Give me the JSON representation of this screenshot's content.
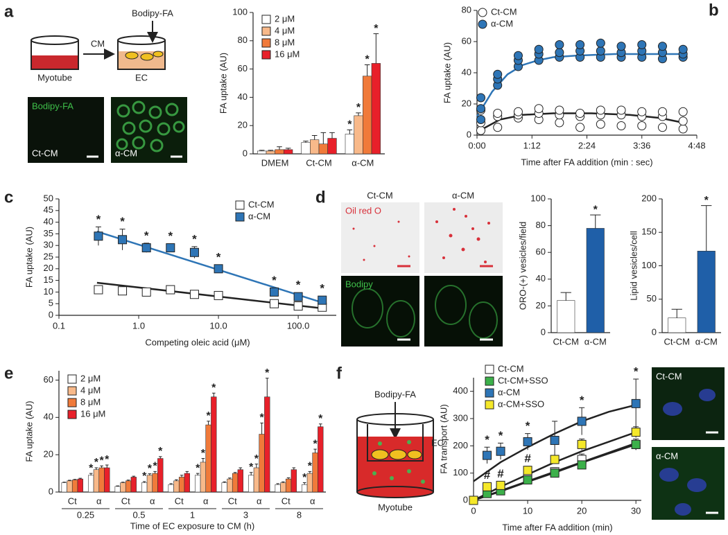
{
  "chart_data": [
    {
      "type": "bar",
      "ylabel": "FA uptake (AU)",
      "categories": [
        "DMEM",
        "Ct-CM",
        "α-CM"
      ],
      "ylim": [
        0,
        100
      ],
      "yticks": [
        0,
        20,
        40,
        60,
        80,
        100
      ],
      "series": [
        {
          "name": "2 μM",
          "color": "#ffffff",
          "values": [
            2,
            8,
            14
          ],
          "errors": [
            0.5,
            1,
            3
          ],
          "stars": [
            null,
            null,
            "*"
          ]
        },
        {
          "name": "4 μM",
          "color": "#f8b98a",
          "values": [
            2,
            10,
            27
          ],
          "errors": [
            0.5,
            3,
            2
          ],
          "stars": [
            null,
            null,
            "*"
          ]
        },
        {
          "name": "8 μM",
          "color": "#f07a3a",
          "values": [
            3,
            7,
            55
          ],
          "errors": [
            2,
            8,
            8
          ],
          "stars": [
            null,
            null,
            "*"
          ]
        },
        {
          "name": "16 μM",
          "color": "#e8202a",
          "values": [
            3,
            11,
            64
          ],
          "errors": [
            1,
            4,
            21
          ],
          "stars": [
            null,
            null,
            "*"
          ]
        }
      ]
    },
    {
      "type": "scatter",
      "marker": "circle",
      "ylabel": "FA uptake (AU)",
      "xlabel": "Time after FA addition (min : sec)",
      "xlim": [
        0,
        288
      ],
      "xticks": [
        {
          "value": 0,
          "label": "0:00"
        },
        {
          "value": 72,
          "label": "1:12"
        },
        {
          "value": 144,
          "label": "2:24"
        },
        {
          "value": 216,
          "label": "3:36"
        },
        {
          "value": 288,
          "label": "4:48"
        }
      ],
      "ylim": [
        0,
        80
      ],
      "yticks": [
        0,
        20,
        40,
        60,
        80
      ],
      "series": [
        {
          "name": "Ct-CM",
          "color": "#ffffff",
          "x": [
            5,
            5,
            5,
            27,
            27,
            27,
            54,
            54,
            54,
            81,
            81,
            81,
            108,
            108,
            108,
            135,
            135,
            135,
            162,
            162,
            162,
            189,
            189,
            189,
            216,
            216,
            216,
            243,
            243,
            243,
            270,
            270,
            270
          ],
          "values": [
            3,
            8,
            16,
            5,
            12,
            14,
            11,
            13,
            15,
            10,
            14,
            17,
            8,
            13,
            16,
            5,
            12,
            14,
            7,
            13,
            16,
            6,
            13,
            16,
            6,
            12,
            15,
            5,
            12,
            15,
            4,
            9,
            15
          ]
        },
        {
          "name": "α-CM",
          "color": "#2e75b6",
          "x": [
            5,
            5,
            5,
            27,
            27,
            27,
            54,
            54,
            54,
            81,
            81,
            81,
            108,
            108,
            108,
            135,
            135,
            135,
            162,
            162,
            162,
            189,
            189,
            189,
            216,
            216,
            216,
            243,
            243,
            243,
            270,
            270,
            270
          ],
          "values": [
            10,
            17,
            24,
            32,
            36,
            39,
            44,
            48,
            51,
            48,
            52,
            55,
            50,
            53,
            58,
            50,
            54,
            58,
            50,
            54,
            59,
            50,
            53,
            57,
            50,
            54,
            58,
            49,
            53,
            57,
            50,
            52,
            55
          ]
        }
      ],
      "fits": [
        {
          "color": "#222222",
          "x": [
            0,
            30,
            60,
            100,
            150,
            200,
            240,
            270
          ],
          "values": [
            2,
            10,
            13,
            14,
            14,
            13,
            11,
            8
          ]
        },
        {
          "color": "#2e75b6",
          "x": [
            0,
            20,
            40,
            60,
            80,
            100,
            130,
            180,
            270
          ],
          "values": [
            12,
            28,
            39,
            45,
            48,
            50,
            51,
            52,
            52
          ]
        }
      ]
    },
    {
      "type": "scatter",
      "marker": "square",
      "xlog": true,
      "ylabel": "FA uptake (AU)",
      "xlabel": "Competing oleic acid (μM)",
      "xlim": [
        0.1,
        300
      ],
      "xticks": [
        0.1,
        {
          "value": 1,
          "label": "1.0"
        },
        {
          "value": 10,
          "label": "10.0"
        },
        {
          "value": 100,
          "label": "100.0"
        }
      ],
      "ylim": [
        0,
        50
      ],
      "yticks": [
        0,
        5,
        10,
        15,
        20,
        25,
        30,
        35,
        40,
        45,
        50
      ],
      "series": [
        {
          "name": "Ct-CM",
          "color": "#ffffff",
          "x": [
            0.3125,
            0.625,
            1.25,
            2.5,
            5,
            10,
            50,
            100,
            200
          ],
          "values": [
            11,
            10.5,
            10,
            11,
            9,
            8.5,
            5,
            4,
            3.5
          ],
          "errors": [
            0.5,
            0.5,
            0.5,
            0.5,
            0.5,
            0.5,
            0.5,
            0.5,
            0.5
          ]
        },
        {
          "name": "α-CM",
          "color": "#2e75b6",
          "x": [
            0.3125,
            0.625,
            1.25,
            2.5,
            5,
            10,
            50,
            100,
            200
          ],
          "values": [
            34,
            32.5,
            29,
            29,
            27,
            20,
            10,
            8,
            6.5
          ],
          "errors": [
            4,
            4.5,
            2,
            1.5,
            2.5,
            1,
            1,
            1,
            1
          ],
          "stars": [
            "*",
            "*",
            "*",
            "*",
            "*",
            "*",
            "*",
            "*",
            "*"
          ]
        }
      ],
      "fits": [
        {
          "color": "#222222",
          "x": [
            0.3,
            200
          ],
          "values": [
            14,
            3
          ]
        },
        {
          "color": "#2e75b6",
          "x": [
            0.3,
            200
          ],
          "values": [
            36,
            5.5
          ]
        }
      ]
    },
    {
      "type": "bar",
      "ylabel": "ORO-(+) vesicles/field",
      "categories": [
        "Ct-CM",
        "α-CM"
      ],
      "ylim": [
        0,
        100
      ],
      "yticks": [
        0,
        20,
        40,
        60,
        80,
        100
      ],
      "colors": [
        "#ffffff",
        "#1f5fa8"
      ],
      "values": [
        24,
        78
      ],
      "errors": [
        6,
        10
      ],
      "stars": [
        null,
        "*"
      ]
    },
    {
      "type": "bar",
      "ylabel": "Lipid vesicles/cell",
      "categories": [
        "Ct-CM",
        "α-CM"
      ],
      "ylim": [
        0,
        200
      ],
      "yticks": [
        0,
        50,
        100,
        150,
        200
      ],
      "colors": [
        "#ffffff",
        "#1f5fa8"
      ],
      "values": [
        22,
        122
      ],
      "errors": [
        13,
        68
      ],
      "stars": [
        null,
        "*"
      ]
    },
    {
      "type": "bar",
      "ylabel": "FA uptake (AU)",
      "xlabel": "Time of EC exposure to CM (h)",
      "categories": [
        "Ct",
        "α",
        "Ct",
        "α",
        "Ct",
        "α",
        "Ct",
        "α",
        "Ct",
        "α"
      ],
      "groups": [
        "0.25",
        "0.5",
        "1",
        "3",
        "8"
      ],
      "ylim": [
        0,
        65
      ],
      "yticks": [
        0,
        20,
        40,
        60
      ],
      "series": [
        {
          "name": "2 μM",
          "color": "#ffffff",
          "values": [
            5,
            9,
            3,
            5,
            4,
            9,
            5,
            9,
            4,
            4
          ],
          "errors": [
            0.3,
            1,
            0.3,
            0.6,
            0.5,
            1,
            0.5,
            1.5,
            0.5,
            1
          ],
          "stars": [
            null,
            "*",
            null,
            "*",
            null,
            "*",
            null,
            "*",
            null,
            "*"
          ]
        },
        {
          "name": "4 μM",
          "color": "#f8b98a",
          "values": [
            6,
            12,
            5,
            9,
            6,
            16,
            7,
            13,
            5,
            10
          ],
          "errors": [
            0.3,
            1,
            0.3,
            0.8,
            0.6,
            2,
            0.5,
            2,
            0.5,
            1
          ],
          "stars": [
            null,
            "*",
            null,
            "*",
            null,
            "*",
            null,
            "*",
            null,
            "*"
          ]
        },
        {
          "name": "8 μM",
          "color": "#f07a3a",
          "values": [
            6.5,
            13,
            6,
            10,
            8,
            36,
            10,
            31,
            7,
            21
          ],
          "errors": [
            0.3,
            1,
            0.4,
            1,
            1,
            2,
            0.5,
            6,
            0.6,
            2
          ],
          "stars": [
            null,
            "*",
            null,
            "*",
            null,
            "*",
            null,
            "*",
            null,
            "*"
          ]
        },
        {
          "name": "16 μM",
          "color": "#e8202a",
          "values": [
            7,
            13,
            8,
            18,
            10,
            51,
            12,
            51,
            12,
            35
          ],
          "errors": [
            0.4,
            1.5,
            0.5,
            1,
            1,
            2,
            1,
            10,
            1,
            1.5
          ],
          "stars": [
            null,
            "*",
            null,
            "*",
            null,
            "*",
            null,
            "*",
            null,
            "*"
          ]
        }
      ]
    },
    {
      "type": "scatter",
      "marker": "square",
      "ylabel": "FA transport (AU)",
      "xlabel": "Time after FA addition (min)",
      "xlim": [
        0,
        31
      ],
      "xticks": [
        0,
        10,
        20,
        30
      ],
      "ylim": [
        0,
        450
      ],
      "yticks": [
        0,
        100,
        200,
        300,
        400
      ],
      "series": [
        {
          "name": "Ct-CM",
          "color": "#ffffff",
          "x": [
            0,
            2.5,
            5,
            10,
            15,
            20,
            30
          ],
          "values": [
            0,
            30,
            40,
            80,
            105,
            150,
            205
          ],
          "errors": [
            0,
            10,
            10,
            15,
            15,
            20,
            20
          ]
        },
        {
          "name": "Ct-CM+SSO",
          "color": "#3cb04a",
          "x": [
            0,
            2.5,
            5,
            10,
            15,
            20,
            30
          ],
          "values": [
            0,
            25,
            35,
            75,
            100,
            130,
            205
          ],
          "errors": [
            0,
            8,
            10,
            12,
            15,
            15,
            20
          ]
        },
        {
          "name": "α-CM",
          "color": "#2e75b6",
          "x": [
            0,
            2.5,
            5,
            10,
            15,
            20,
            30
          ],
          "values": [
            0,
            165,
            180,
            215,
            220,
            290,
            355
          ],
          "errors": [
            0,
            30,
            30,
            30,
            70,
            50,
            90
          ],
          "stars": [
            null,
            "*",
            "*",
            "*",
            null,
            "*",
            "*"
          ]
        },
        {
          "name": "α-CM+SSO",
          "color": "#f5e82a",
          "x": [
            0,
            2.5,
            5,
            10,
            15,
            20,
            30
          ],
          "values": [
            0,
            50,
            55,
            110,
            150,
            205,
            250
          ],
          "errors": [
            0,
            10,
            12,
            15,
            15,
            20,
            20
          ],
          "stars": [
            null,
            "#",
            "#",
            "#",
            null,
            null,
            null
          ]
        }
      ],
      "fits": [
        {
          "color": "#222222",
          "x": [
            0,
            5,
            10,
            15,
            20,
            25,
            30
          ],
          "values": [
            70,
            140,
            195,
            245,
            290,
            325,
            350
          ]
        },
        {
          "color": "#222222",
          "x": [
            0,
            5,
            10,
            15,
            20,
            25,
            30
          ],
          "values": [
            0,
            50,
            95,
            140,
            180,
            215,
            250
          ]
        },
        {
          "color": "#222222",
          "x": [
            0,
            5,
            10,
            15,
            20,
            25,
            30
          ],
          "values": [
            0,
            35,
            70,
            105,
            140,
            175,
            210
          ]
        },
        {
          "color": "#222222",
          "x": [
            0,
            5,
            10,
            15,
            20,
            25,
            30
          ],
          "values": [
            0,
            33,
            68,
            102,
            138,
            172,
            205
          ]
        }
      ]
    }
  ],
  "panel_labels": [
    "a",
    "b",
    "c",
    "d",
    "e",
    "f"
  ],
  "panel_a": {
    "probe": "Bodipy-FA",
    "transfer": "CM",
    "source": "Myotube",
    "target": "EC",
    "image_stain": "Bodipy-FA",
    "image_ct": "Ct-CM",
    "image_alpha": "α-CM"
  },
  "panel_d": {
    "col_ct": "Ct-CM",
    "col_alpha": "α-CM",
    "stain_oro": "Oil red O",
    "stain_bodipy": "Bodipy"
  },
  "panel_f": {
    "probe": "Bodipy-FA",
    "insert": "EC",
    "bottom": "Myotube",
    "image_ct": "Ct-CM",
    "image_alpha": "α-CM"
  }
}
